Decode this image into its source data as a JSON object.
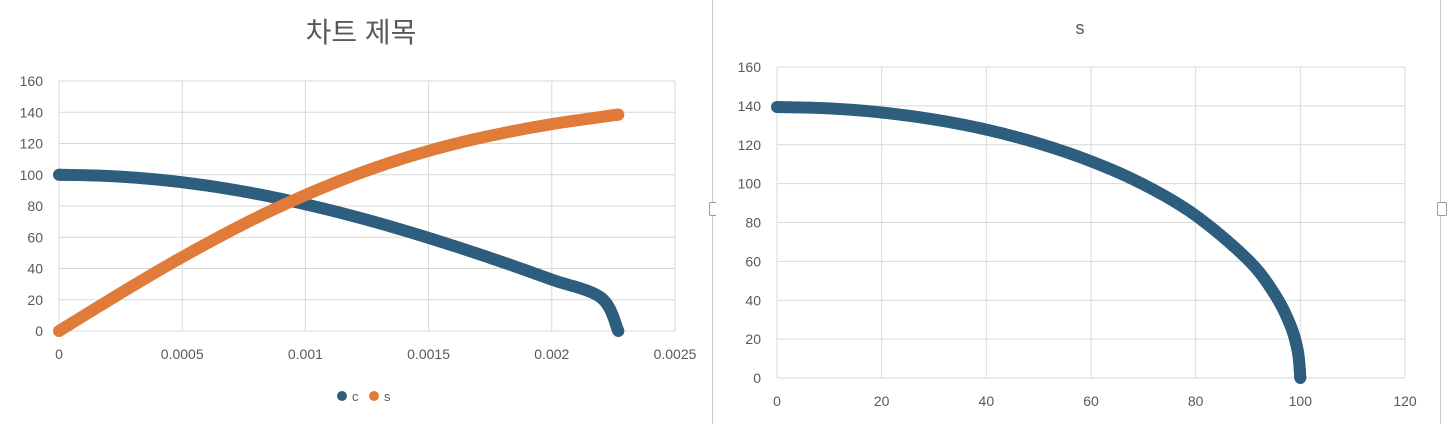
{
  "chart_data": [
    {
      "type": "scatter",
      "title": "차트 제목",
      "xlabel": "",
      "ylabel": "",
      "xlim": [
        0,
        0.0025
      ],
      "ylim": [
        0,
        160
      ],
      "x_ticks": [
        "0",
        "0.0005",
        "0.001",
        "0.0015",
        "0.002",
        "0.0025"
      ],
      "y_ticks": [
        "0",
        "20",
        "40",
        "60",
        "80",
        "100",
        "120",
        "140",
        "160"
      ],
      "grid": true,
      "legend": "bottom",
      "series": [
        {
          "name": "c",
          "color": "#2e5e7e",
          "points": [
            [
              0,
              100
            ],
            [
              0.0002,
              99.2
            ],
            [
              0.0004,
              96.9
            ],
            [
              0.0006,
              93.1
            ],
            [
              0.0008,
              87.8
            ],
            [
              0.001,
              81.1
            ],
            [
              0.0012,
              73.3
            ],
            [
              0.0014,
              64.4
            ],
            [
              0.0016,
              54.6
            ],
            [
              0.0018,
              44.1
            ],
            [
              0.002,
              32.9
            ],
            [
              0.0022,
              21.3
            ],
            [
              0.00227,
              0
            ]
          ]
        },
        {
          "name": "s",
          "color": "#e07b39",
          "points": [
            [
              0,
              0
            ],
            [
              0.0002,
              19.4
            ],
            [
              0.0004,
              38.3
            ],
            [
              0.0006,
              56.0
            ],
            [
              0.0008,
              72.4
            ],
            [
              0.001,
              87.0
            ],
            [
              0.0012,
              99.8
            ],
            [
              0.0014,
              110.6
            ],
            [
              0.0016,
              119.5
            ],
            [
              0.0018,
              126.6
            ],
            [
              0.002,
              132.4
            ],
            [
              0.0022,
              137.0
            ],
            [
              0.00227,
              138.5
            ]
          ]
        }
      ]
    },
    {
      "type": "scatter",
      "title": "s",
      "xlabel": "",
      "ylabel": "",
      "xlim": [
        0,
        120
      ],
      "ylim": [
        0,
        160
      ],
      "x_ticks": [
        "0",
        "20",
        "40",
        "60",
        "80",
        "100",
        "120"
      ],
      "y_ticks": [
        "0",
        "20",
        "40",
        "60",
        "80",
        "100",
        "120",
        "140",
        "160"
      ],
      "grid": true,
      "legend": "none",
      "series": [
        {
          "name": "",
          "color": "#2e5e7e",
          "points": [
            [
              0,
              139.4
            ],
            [
              10,
              138.7
            ],
            [
              20,
              136.6
            ],
            [
              30,
              133.0
            ],
            [
              40,
              127.8
            ],
            [
              50,
              120.7
            ],
            [
              60,
              111.5
            ],
            [
              70,
              99.6
            ],
            [
              80,
              83.6
            ],
            [
              90,
              60.8
            ],
            [
              95,
              43.5
            ],
            [
              98,
              27.8
            ],
            [
              99.5,
              14.0
            ],
            [
              100,
              0
            ]
          ]
        }
      ]
    }
  ]
}
